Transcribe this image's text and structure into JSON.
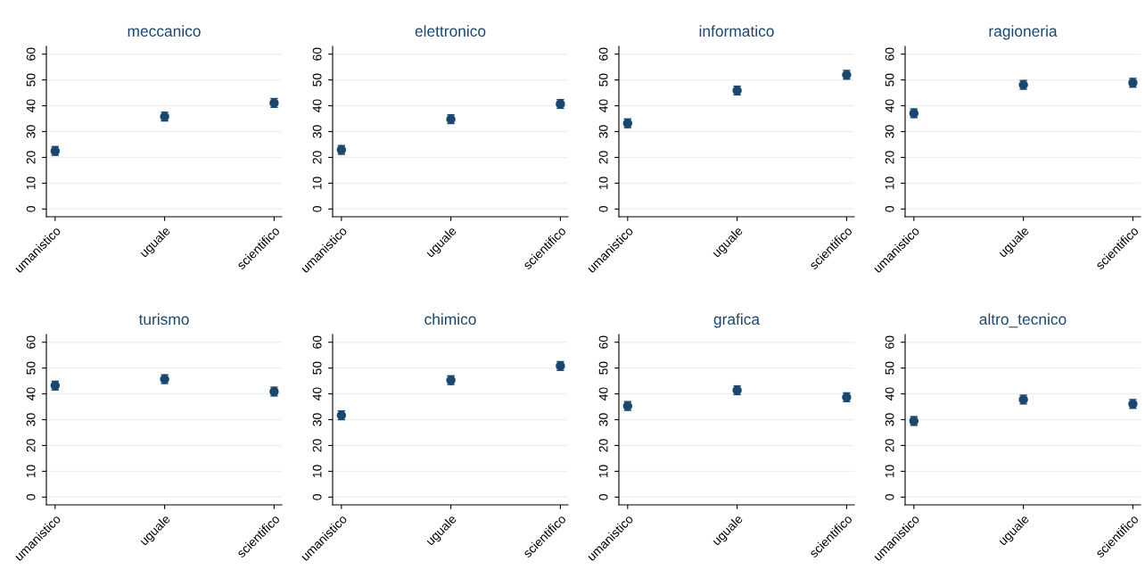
{
  "chart_data": [
    {
      "type": "scatter",
      "title": "meccanico",
      "categories": [
        "umanistico",
        "uguale",
        "scientifico"
      ],
      "values": [
        22.5,
        35.8,
        41.1
      ],
      "errors": [
        1.7,
        1.7,
        1.7
      ],
      "color": "#1a476f",
      "marker": "circle",
      "ylim": [
        -3,
        63
      ],
      "yticks": [
        0,
        10,
        20,
        30,
        40,
        50,
        60
      ],
      "grid": "y"
    },
    {
      "type": "scatter",
      "title": "elettronico",
      "categories": [
        "umanistico",
        "uguale",
        "scientifico"
      ],
      "values": [
        22.9,
        34.8,
        40.7
      ],
      "errors": [
        1.7,
        1.7,
        1.7
      ],
      "color": "#1a476f",
      "marker": "circle",
      "ylim": [
        -3,
        63
      ],
      "yticks": [
        0,
        10,
        20,
        30,
        40,
        50,
        60
      ],
      "grid": "y"
    },
    {
      "type": "scatter",
      "title": "informatico",
      "categories": [
        "umanistico",
        "uguale",
        "scientifico"
      ],
      "values": [
        33.2,
        45.9,
        52.0
      ],
      "errors": [
        1.7,
        1.7,
        1.7
      ],
      "color": "#1a476f",
      "marker": "circle",
      "ylim": [
        -3,
        63
      ],
      "yticks": [
        0,
        10,
        20,
        30,
        40,
        50,
        60
      ],
      "grid": "y"
    },
    {
      "type": "scatter",
      "title": "ragioneria",
      "categories": [
        "umanistico",
        "uguale",
        "scientifico"
      ],
      "values": [
        37.1,
        48.1,
        48.9
      ],
      "errors": [
        1.7,
        1.7,
        1.7
      ],
      "color": "#1a476f",
      "marker": "circle",
      "ylim": [
        -3,
        63
      ],
      "yticks": [
        0,
        10,
        20,
        30,
        40,
        50,
        60
      ],
      "grid": "y"
    },
    {
      "type": "scatter",
      "title": "turismo",
      "categories": [
        "umanistico",
        "uguale",
        "scientifico"
      ],
      "values": [
        43.2,
        45.7,
        40.9
      ],
      "errors": [
        1.7,
        1.7,
        1.7
      ],
      "color": "#1a476f",
      "marker": "circle",
      "ylim": [
        -3,
        63
      ],
      "yticks": [
        0,
        10,
        20,
        30,
        40,
        50,
        60
      ],
      "grid": "y"
    },
    {
      "type": "scatter",
      "title": "chimico",
      "categories": [
        "umanistico",
        "uguale",
        "scientifico"
      ],
      "values": [
        31.7,
        45.3,
        50.8
      ],
      "errors": [
        1.7,
        1.7,
        1.7
      ],
      "color": "#1a476f",
      "marker": "circle",
      "ylim": [
        -3,
        63
      ],
      "yticks": [
        0,
        10,
        20,
        30,
        40,
        50,
        60
      ],
      "grid": "y"
    },
    {
      "type": "scatter",
      "title": "grafica",
      "categories": [
        "umanistico",
        "uguale",
        "scientifico"
      ],
      "values": [
        35.3,
        41.4,
        38.7
      ],
      "errors": [
        1.7,
        1.7,
        1.7
      ],
      "color": "#1a476f",
      "marker": "circle",
      "ylim": [
        -3,
        63
      ],
      "yticks": [
        0,
        10,
        20,
        30,
        40,
        50,
        60
      ],
      "grid": "y"
    },
    {
      "type": "scatter",
      "title": "altro_tecnico",
      "categories": [
        "umanistico",
        "uguale",
        "scientifico"
      ],
      "values": [
        29.5,
        37.8,
        36.1
      ],
      "errors": [
        1.7,
        1.7,
        1.7
      ],
      "color": "#1a476f",
      "marker": "circle",
      "ylim": [
        -3,
        63
      ],
      "yticks": [
        0,
        10,
        20,
        30,
        40,
        50,
        60
      ],
      "grid": "y"
    }
  ]
}
